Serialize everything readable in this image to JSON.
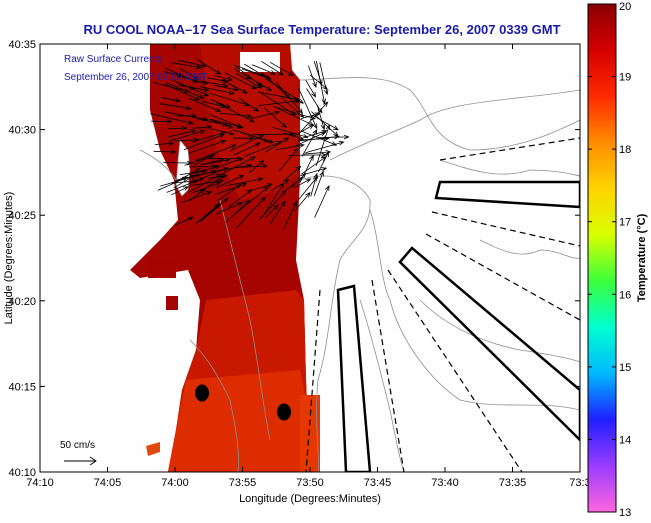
{
  "title": "RU COOL  NOAA–17  Sea Surface Temperature:  September 26, 2007 0339 GMT",
  "overlay": {
    "line1": "Raw Surface Currents",
    "line2": "September 26, 2007 03:00 GMT"
  },
  "axes": {
    "xlabel": "Longitude (Degrees:Minutes)",
    "ylabel": "Latitude (Degrees:Minutes)",
    "xticks": [
      "74:10",
      "74:05",
      "74:00",
      "73:55",
      "73:50",
      "73:45",
      "73:40",
      "73:35",
      "73:3"
    ],
    "yticks": [
      "40:35",
      "40:30",
      "40:25",
      "40:20",
      "40:15",
      "40:10"
    ]
  },
  "colorbar": {
    "label": "Temperature (°C)",
    "ticks": [
      "20",
      "19",
      "18",
      "17",
      "16",
      "15",
      "14",
      "13"
    ],
    "min": 13,
    "max": 20,
    "colors": [
      "#ff66dd",
      "#9a3cff",
      "#1f1fff",
      "#00b8ff",
      "#00ffd0",
      "#3cff3c",
      "#d8ff00",
      "#ffd400",
      "#ff8c00",
      "#ff2a00",
      "#d40000",
      "#8a0000"
    ]
  },
  "scale": {
    "label": "50 cm/s"
  },
  "colors": {
    "title": "#1a1aa8",
    "overlay_text": "#2020b0",
    "land": "#fefefe",
    "contour": "#8a8a8a",
    "sst_dark": "#9a0000",
    "sst_mid": "#c41a00",
    "sst_warm": "#e03000"
  }
}
